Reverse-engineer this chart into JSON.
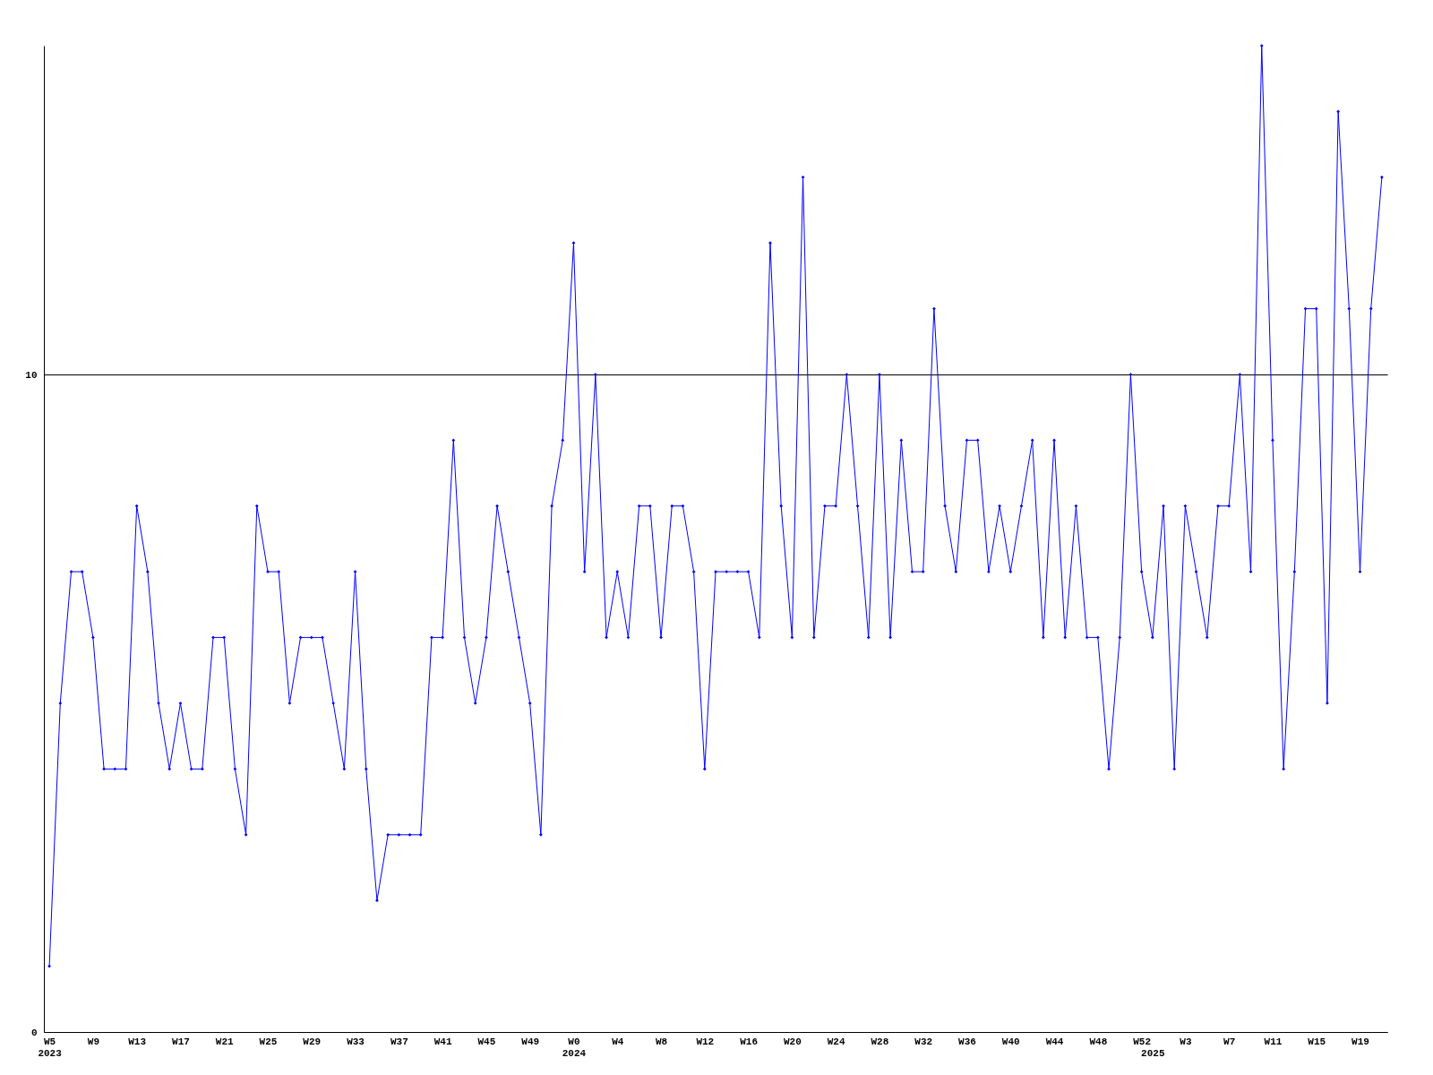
{
  "chart_data": {
    "type": "line",
    "categories": [
      "W5\n2023",
      null,
      null,
      null,
      "W9",
      null,
      null,
      null,
      "W13",
      null,
      null,
      null,
      "W17",
      null,
      null,
      null,
      "W21",
      null,
      null,
      null,
      "W25",
      null,
      null,
      null,
      "W29",
      null,
      null,
      null,
      "W33",
      null,
      null,
      null,
      "W37",
      null,
      null,
      null,
      "W41",
      null,
      null,
      null,
      "W45",
      null,
      null,
      null,
      "W49",
      null,
      null,
      null,
      "W0\n2024",
      null,
      null,
      null,
      "W4",
      null,
      null,
      null,
      "W8",
      null,
      null,
      null,
      "W12",
      null,
      null,
      null,
      "W16",
      null,
      null,
      null,
      "W20",
      null,
      null,
      null,
      "W24",
      null,
      null,
      null,
      "W28",
      null,
      null,
      null,
      "W32",
      null,
      null,
      null,
      "W36",
      null,
      null,
      null,
      "W40",
      null,
      null,
      null,
      "W44",
      null,
      null,
      null,
      "W48",
      null,
      null,
      null,
      "W52",
      "\n2025",
      null,
      null,
      "W3",
      null,
      null,
      null,
      "W7",
      null,
      null,
      null,
      "W11",
      null,
      null,
      null,
      "W15",
      null,
      null,
      null,
      "W19",
      null,
      null
    ],
    "series": [
      {
        "color": "#0000ff",
        "values": [
          1,
          5,
          7,
          7,
          6,
          4,
          4,
          4,
          8,
          7,
          5,
          4,
          5,
          4,
          4,
          6,
          6,
          4,
          3,
          8,
          7,
          7,
          5,
          6,
          6,
          6,
          5,
          4,
          7,
          4,
          2,
          3,
          3,
          3,
          3,
          6,
          6,
          9,
          6,
          5,
          6,
          8,
          7,
          6,
          5,
          3,
          8,
          9,
          12,
          7,
          10,
          6,
          7,
          6,
          8,
          8,
          6,
          8,
          8,
          7,
          4,
          7,
          7,
          7,
          7,
          6,
          12,
          8,
          6,
          13,
          6,
          8,
          8,
          10,
          8,
          6,
          10,
          6,
          9,
          7,
          7,
          11,
          8,
          7,
          9,
          9,
          7,
          8,
          7,
          8,
          9,
          6,
          9,
          6,
          8,
          6,
          6,
          4,
          6,
          10,
          7,
          6,
          8,
          4,
          8,
          7,
          6,
          8,
          8,
          10,
          7,
          15,
          9,
          4,
          7,
          11,
          11,
          5,
          14,
          11,
          7,
          11,
          13
        ]
      }
    ],
    "ylim": [
      0,
      15
    ],
    "yticks": [
      0,
      10
    ],
    "grid": "y",
    "marker": "diamond",
    "line_style": "solid"
  }
}
